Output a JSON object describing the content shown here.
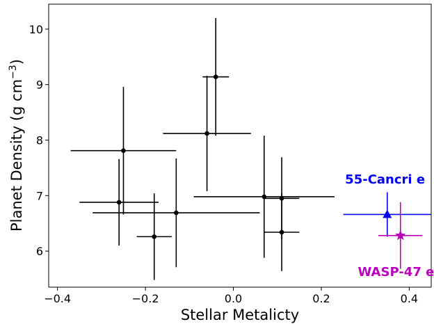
{
  "chart_data": {
    "type": "scatter",
    "xlabel": "Stellar Metalicty",
    "ylabel_main": "Planet Density (g cm",
    "ylabel_sup": "−3",
    "ylabel_close": ")",
    "xlim": [
      -0.42,
      0.45
    ],
    "ylim": [
      5.35,
      10.45
    ],
    "x_ticks": [
      -0.4,
      -0.2,
      0.0,
      0.2,
      0.4
    ],
    "x_tick_labels": [
      "−0.4",
      "−0.2",
      "0.0",
      "0.2",
      "0.4"
    ],
    "y_ticks": [
      6,
      7,
      8,
      9,
      10
    ],
    "y_tick_labels": [
      "6",
      "7",
      "8",
      "9",
      "10"
    ],
    "grid": false,
    "series": [
      {
        "color": "#000000",
        "marker": "circle",
        "points": [
          {
            "x": -0.26,
            "y": 6.88,
            "xerr": 0.09,
            "yerr": 0.78
          },
          {
            "x": -0.25,
            "y": 7.81,
            "xerr": 0.12,
            "yerr": 1.15
          },
          {
            "x": -0.18,
            "y": 6.26,
            "xerr": 0.04,
            "yerr": 0.78
          },
          {
            "x": -0.13,
            "y": 6.69,
            "xerr": 0.19,
            "yerr": 0.98
          },
          {
            "x": -0.06,
            "y": 8.12,
            "xerr": 0.1,
            "yerr": 1.04
          },
          {
            "x": -0.04,
            "y": 9.14,
            "xerr": 0.03,
            "yerr": 1.06
          },
          {
            "x": 0.07,
            "y": 6.98,
            "xerr": 0.16,
            "yerr": 1.1
          },
          {
            "x": 0.11,
            "y": 6.95,
            "xerr": 0.04,
            "yerr": 0.74
          },
          {
            "x": 0.11,
            "y": 6.34,
            "xerr": 0.04,
            "yerr": 0.7
          }
        ]
      },
      {
        "name": "55-Cancri e",
        "color": "#0000ee",
        "marker": "triangle",
        "points": [
          {
            "x": 0.35,
            "y": 6.66,
            "xerr": 0.1,
            "yerr": 0.4
          }
        ]
      },
      {
        "name": "WASP-47 e",
        "color": "#bb00bb",
        "marker": "star",
        "points": [
          {
            "x": 0.38,
            "y": 6.28,
            "xerr": 0.05,
            "yerr": 0.6
          }
        ]
      }
    ],
    "annotations": [
      {
        "text": "55-Cancri e",
        "color": "#0000ee",
        "x": 0.345,
        "y": 7.22
      },
      {
        "text": "WASP-47 e",
        "color": "#bb00bb",
        "x": 0.37,
        "y": 5.55
      }
    ]
  }
}
